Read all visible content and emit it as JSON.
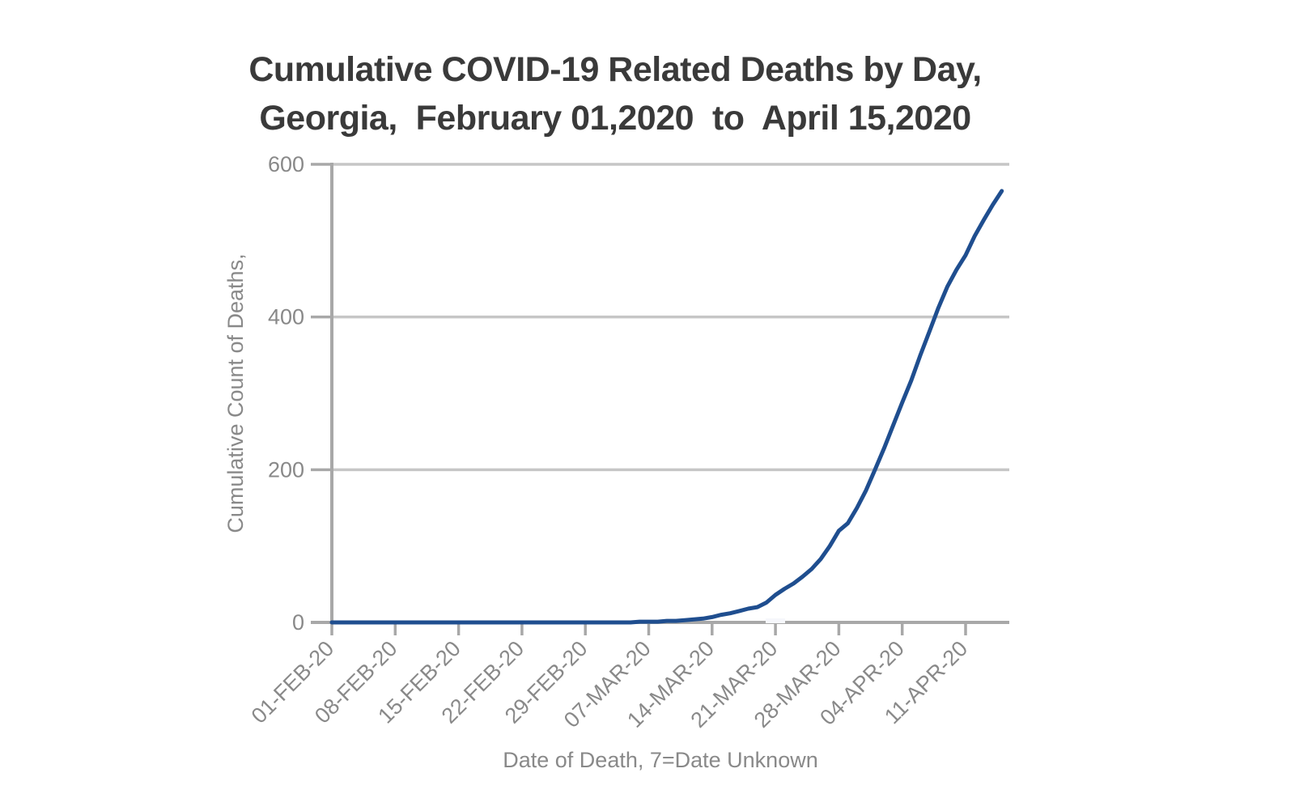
{
  "chart": {
    "title_line1": "Cumulative COVID-19 Related Deaths by Day,",
    "title_line2": "Georgia,  February 01,2020  to  April 15,2020"
  },
  "chart_data": {
    "type": "line",
    "title": "Cumulative COVID-19 Related Deaths by Day, Georgia, February 01,2020 to April 15,2020",
    "xlabel": "Date of Death, 7=Date Unknown",
    "ylabel": "Cumulative Count of Deaths,",
    "ylim": [
      0,
      600
    ],
    "y_ticks": [
      0,
      200,
      400,
      600
    ],
    "x_tick_labels": [
      "01-FEB-20",
      "08-FEB-20",
      "15-FEB-20",
      "22-FEB-20",
      "29-FEB-20",
      "07-MAR-20",
      "14-MAR-20",
      "21-MAR-20",
      "28-MAR-20",
      "04-APR-20",
      "11-APR-20"
    ],
    "grid": "horizontal",
    "legend": "none",
    "series": [
      {
        "name": "Cumulative count of deaths",
        "color": "#1f4e8f",
        "dates": [
          "01-FEB-20",
          "02-FEB-20",
          "03-FEB-20",
          "04-FEB-20",
          "05-FEB-20",
          "06-FEB-20",
          "07-FEB-20",
          "08-FEB-20",
          "09-FEB-20",
          "10-FEB-20",
          "11-FEB-20",
          "12-FEB-20",
          "13-FEB-20",
          "14-FEB-20",
          "15-FEB-20",
          "16-FEB-20",
          "17-FEB-20",
          "18-FEB-20",
          "19-FEB-20",
          "20-FEB-20",
          "21-FEB-20",
          "22-FEB-20",
          "23-FEB-20",
          "24-FEB-20",
          "25-FEB-20",
          "26-FEB-20",
          "27-FEB-20",
          "28-FEB-20",
          "29-FEB-20",
          "01-MAR-20",
          "02-MAR-20",
          "03-MAR-20",
          "04-MAR-20",
          "05-MAR-20",
          "06-MAR-20",
          "07-MAR-20",
          "08-MAR-20",
          "09-MAR-20",
          "10-MAR-20",
          "11-MAR-20",
          "12-MAR-20",
          "13-MAR-20",
          "14-MAR-20",
          "15-MAR-20",
          "16-MAR-20",
          "17-MAR-20",
          "18-MAR-20",
          "19-MAR-20",
          "20-MAR-20",
          "21-MAR-20",
          "22-MAR-20",
          "23-MAR-20",
          "24-MAR-20",
          "25-MAR-20",
          "26-MAR-20",
          "27-MAR-20",
          "28-MAR-20",
          "29-MAR-20",
          "30-MAR-20",
          "31-MAR-20",
          "01-APR-20",
          "02-APR-20",
          "03-APR-20",
          "04-APR-20",
          "05-APR-20",
          "06-APR-20",
          "07-APR-20",
          "08-APR-20",
          "09-APR-20",
          "10-APR-20",
          "11-APR-20",
          "12-APR-20",
          "13-APR-20",
          "14-APR-20",
          "15-APR-20"
        ],
        "values": [
          0,
          0,
          0,
          0,
          0,
          0,
          0,
          0,
          0,
          0,
          0,
          0,
          0,
          0,
          0,
          0,
          0,
          0,
          0,
          0,
          0,
          0,
          0,
          0,
          0,
          0,
          0,
          0,
          0,
          0,
          0,
          0,
          0,
          0,
          1,
          1,
          1,
          2,
          2,
          3,
          4,
          5,
          7,
          10,
          12,
          15,
          18,
          20,
          26,
          36,
          44,
          51,
          60,
          70,
          83,
          100,
          120,
          130,
          150,
          173,
          200,
          228,
          258,
          288,
          317,
          350,
          381,
          412,
          440,
          462,
          481,
          506,
          527,
          547,
          565
        ]
      }
    ],
    "colors": {
      "line": "#1f4e8f",
      "gridline": "#c6c6c6",
      "axis": "#a8a8a8",
      "tick_label": "#898989",
      "title": "#3a3a3a"
    }
  }
}
